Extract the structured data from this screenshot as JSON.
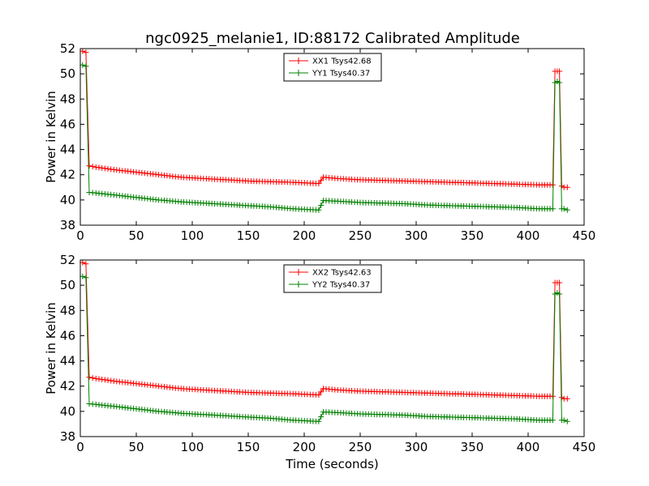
{
  "title": "ngc0925_melanie1, ID:88172 Calibrated Amplitude",
  "colors": {
    "xx": "#ff0000",
    "yy": "#008000"
  },
  "chart_data": [
    {
      "type": "line",
      "xlabel": "",
      "ylabel": "Power in Kelvin",
      "xlim": [
        0,
        450
      ],
      "ylim": [
        38,
        52
      ],
      "xticks": [
        "0",
        "50",
        "100",
        "150",
        "200",
        "250",
        "300",
        "350",
        "400",
        "450"
      ],
      "yticks": [
        "38",
        "40",
        "42",
        "44",
        "46",
        "48",
        "50",
        "52"
      ],
      "grid": false,
      "marker": "+",
      "legend_placement": "top-center",
      "series": [
        {
          "name": "XX1 Tsys42.68",
          "color": "#ff0000",
          "x": [
            2,
            5,
            8,
            14,
            30,
            50,
            70,
            90,
            110,
            130,
            150,
            170,
            190,
            213,
            217,
            230,
            250,
            270,
            290,
            310,
            330,
            350,
            370,
            390,
            410,
            422,
            424,
            426,
            428,
            430,
            432,
            435
          ],
          "y": [
            51.8,
            51.7,
            42.7,
            42.6,
            42.4,
            42.2,
            42.0,
            41.8,
            41.7,
            41.6,
            41.5,
            41.45,
            41.4,
            41.3,
            41.8,
            41.7,
            41.6,
            41.55,
            41.5,
            41.45,
            41.4,
            41.35,
            41.3,
            41.25,
            41.2,
            41.2,
            50.2,
            50.2,
            50.2,
            41.1,
            41.0,
            41.0
          ]
        },
        {
          "name": "YY1 Tsys40.37",
          "color": "#008000",
          "x": [
            2,
            5,
            8,
            14,
            30,
            50,
            70,
            90,
            110,
            130,
            150,
            170,
            190,
            213,
            217,
            230,
            250,
            270,
            290,
            310,
            330,
            350,
            370,
            390,
            410,
            422,
            424,
            426,
            428,
            430,
            432,
            435
          ],
          "y": [
            50.7,
            50.6,
            40.6,
            40.55,
            40.4,
            40.2,
            40.0,
            39.85,
            39.75,
            39.65,
            39.55,
            39.45,
            39.3,
            39.2,
            39.95,
            39.9,
            39.8,
            39.75,
            39.7,
            39.6,
            39.55,
            39.5,
            39.45,
            39.4,
            39.3,
            39.3,
            49.3,
            49.4,
            49.3,
            39.3,
            39.3,
            39.2
          ]
        }
      ]
    },
    {
      "type": "line",
      "xlabel": "Time (seconds)",
      "ylabel": "Power in Kelvin",
      "xlim": [
        0,
        450
      ],
      "ylim": [
        38,
        52
      ],
      "xticks": [
        "0",
        "50",
        "100",
        "150",
        "200",
        "250",
        "300",
        "350",
        "400",
        "450"
      ],
      "yticks": [
        "38",
        "40",
        "42",
        "44",
        "46",
        "48",
        "50",
        "52"
      ],
      "grid": false,
      "marker": "+",
      "legend_placement": "top-center",
      "series": [
        {
          "name": "XX2 Tsys42.63",
          "color": "#ff0000",
          "x": [
            2,
            5,
            8,
            14,
            30,
            50,
            70,
            90,
            110,
            130,
            150,
            170,
            190,
            213,
            217,
            230,
            250,
            270,
            290,
            310,
            330,
            350,
            370,
            390,
            410,
            422,
            424,
            426,
            428,
            430,
            432,
            435
          ],
          "y": [
            51.8,
            51.7,
            42.7,
            42.6,
            42.4,
            42.2,
            42.0,
            41.8,
            41.7,
            41.6,
            41.5,
            41.45,
            41.4,
            41.3,
            41.8,
            41.7,
            41.6,
            41.55,
            41.5,
            41.45,
            41.4,
            41.35,
            41.3,
            41.25,
            41.2,
            41.2,
            50.2,
            50.2,
            50.2,
            41.1,
            41.0,
            41.0
          ]
        },
        {
          "name": "YY2 Tsys40.37",
          "color": "#008000",
          "x": [
            2,
            5,
            8,
            14,
            30,
            50,
            70,
            90,
            110,
            130,
            150,
            170,
            190,
            213,
            217,
            230,
            250,
            270,
            290,
            310,
            330,
            350,
            370,
            390,
            410,
            422,
            424,
            426,
            428,
            430,
            432,
            435
          ],
          "y": [
            50.7,
            50.6,
            40.6,
            40.55,
            40.4,
            40.2,
            40.0,
            39.85,
            39.75,
            39.65,
            39.55,
            39.45,
            39.3,
            39.2,
            39.95,
            39.9,
            39.8,
            39.75,
            39.7,
            39.6,
            39.55,
            39.5,
            39.45,
            39.4,
            39.3,
            39.3,
            49.3,
            49.4,
            49.3,
            39.3,
            39.3,
            39.2
          ]
        }
      ]
    }
  ]
}
